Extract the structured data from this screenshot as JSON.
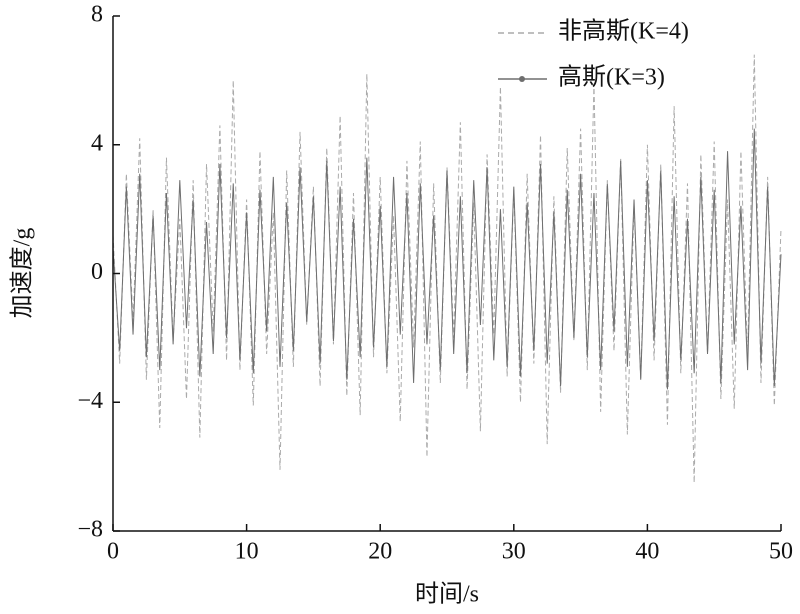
{
  "chart_data": {
    "type": "line",
    "xlabel": "时间/s",
    "ylabel": "加速度/g",
    "xlim": [
      0,
      50
    ],
    "xticks": [
      0,
      10,
      20,
      30,
      40,
      50
    ],
    "ylim": [
      -8,
      8
    ],
    "yticks": [
      {
        "value": -8,
        "label": "−8"
      },
      {
        "value": -4,
        "label": "−4"
      },
      0,
      4,
      8
    ],
    "legend": "upper right",
    "x": [
      0,
      0.5,
      1,
      1.5,
      2,
      2.5,
      3,
      3.5,
      4,
      4.5,
      5,
      5.5,
      6,
      6.5,
      7,
      7.5,
      8,
      8.5,
      9,
      9.5,
      10,
      10.5,
      11,
      11.5,
      12,
      12.5,
      13,
      13.5,
      14,
      14.5,
      15,
      15.5,
      16,
      16.5,
      17,
      17.5,
      18,
      18.5,
      19,
      19.5,
      20,
      20.5,
      21,
      21.5,
      22,
      22.5,
      23,
      23.5,
      24,
      24.5,
      25,
      25.5,
      26,
      26.5,
      27,
      27.5,
      28,
      28.5,
      29,
      29.5,
      30,
      30.5,
      31,
      31.5,
      32,
      32.5,
      33,
      33.5,
      34,
      34.5,
      35,
      35.5,
      36,
      36.5,
      37,
      37.5,
      38,
      38.5,
      39,
      39.5,
      40,
      40.5,
      41,
      41.5,
      42,
      42.5,
      43,
      43.5,
      44,
      44.5,
      45,
      45.5,
      46,
      46.5,
      47,
      47.5,
      48,
      48.5,
      49,
      49.5,
      50
    ],
    "series": [
      {
        "name": "非高斯(K=4)",
        "color": "#aaaaaa",
        "linestyle": "dashed",
        "values": [
          1.2,
          -2.8,
          3.1,
          -1.5,
          4.2,
          -3.3,
          2.0,
          -4.8,
          3.6,
          -2.1,
          1.7,
          -3.9,
          2.9,
          -5.1,
          3.4,
          -1.8,
          4.6,
          -2.7,
          6.0,
          -3.0,
          2.3,
          -4.1,
          3.8,
          -2.5,
          1.9,
          -6.1,
          3.2,
          -2.9,
          4.4,
          -1.6,
          2.7,
          -3.5,
          3.9,
          -2.2,
          4.9,
          -3.8,
          2.5,
          -4.4,
          6.2,
          -2.6,
          3.0,
          -3.1,
          1.8,
          -4.6,
          3.5,
          -2.3,
          4.1,
          -5.7,
          2.8,
          -3.4,
          3.3,
          -2.0,
          4.7,
          -3.6,
          2.2,
          -4.9,
          3.7,
          -1.9,
          5.8,
          -3.2,
          2.6,
          -4.0,
          3.1,
          -2.8,
          4.3,
          -5.3,
          2.4,
          -3.7,
          3.9,
          -2.1,
          4.5,
          -3.0,
          5.9,
          -4.3,
          2.9,
          -2.4,
          3.6,
          -5.0,
          2.1,
          -3.3,
          4.0,
          -2.7,
          3.4,
          -4.7,
          5.2,
          -3.1,
          2.8,
          -6.5,
          3.7,
          -2.5,
          4.1,
          -3.9,
          2.3,
          -4.2,
          3.8,
          -2.6,
          6.8,
          -3.4,
          3.0,
          -4.1,
          1.4
        ]
      },
      {
        "name": "高斯(K=3)",
        "color": "#6e6e6e",
        "linestyle": "solid",
        "values": [
          0.8,
          -2.4,
          2.7,
          -1.9,
          3.1,
          -2.6,
          1.8,
          -3.0,
          2.5,
          -2.2,
          2.9,
          -1.7,
          2.3,
          -3.2,
          1.6,
          -2.5,
          3.4,
          -2.0,
          2.8,
          -2.7,
          1.9,
          -3.1,
          2.6,
          -1.8,
          3.0,
          -2.9,
          2.2,
          -2.4,
          3.3,
          -1.5,
          2.4,
          -2.8,
          3.5,
          -2.1,
          2.7,
          -3.3,
          1.7,
          -2.6,
          3.6,
          -2.3,
          2.1,
          -2.9,
          3.0,
          -1.9,
          2.5,
          -3.4,
          2.8,
          -2.2,
          1.8,
          -3.0,
          3.2,
          -2.5,
          2.4,
          -3.1,
          2.9,
          -1.6,
          3.3,
          -2.7,
          2.0,
          -2.9,
          2.7,
          -3.2,
          2.2,
          -2.4,
          3.4,
          -2.8,
          1.9,
          -3.5,
          2.6,
          -2.0,
          3.1,
          -2.6,
          2.5,
          -3.0,
          2.8,
          -1.8,
          3.5,
          -2.9,
          2.3,
          -3.3,
          2.9,
          -2.1,
          3.2,
          -3.6,
          2.4,
          -2.7,
          1.7,
          -3.1,
          3.0,
          -2.5,
          2.6,
          -3.4,
          3.8,
          -2.2,
          2.1,
          -3.0,
          4.5,
          -2.8,
          2.7,
          -3.5,
          0.6
        ]
      }
    ]
  }
}
